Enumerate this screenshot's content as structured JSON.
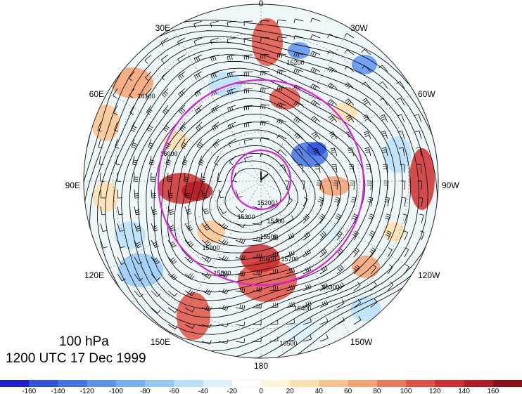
{
  "figure": {
    "level": "100 hPa",
    "valid_time": "1200 UTC 17 Dec 1999"
  },
  "longitude_labels": [
    "0",
    "30W",
    "60W",
    "90W",
    "120W",
    "150W",
    "180",
    "150E",
    "120E",
    "90E",
    "60E",
    "30E"
  ],
  "contour_labels": [
    "15200",
    "15300",
    "15400",
    "15500",
    "15600",
    "15700",
    "15800",
    "15900",
    "16000",
    "16100",
    "16200",
    "16300",
    "16400",
    "16500"
  ],
  "colorbar": {
    "tick_labels": [
      "-160",
      "-140",
      "-120",
      "-100",
      "-80",
      "-60",
      "-40",
      "-20",
      "0",
      "20",
      "40",
      "60",
      "80",
      "100",
      "120",
      "140",
      "160"
    ],
    "colors": [
      "#1e1ed2",
      "#2f52df",
      "#4272e6",
      "#5a92ee",
      "#77b0f2",
      "#96caf5",
      "#b8e0f8",
      "#dcf2fb",
      "#ffffff",
      "#fff4d6",
      "#fde0b0",
      "#f9c390",
      "#f4a273",
      "#ec7a5a",
      "#e25044",
      "#cf2d2f",
      "#b31b22",
      "#8e0f18"
    ]
  },
  "colors": {
    "ring": "#dd22dd",
    "contour": "#111111"
  }
}
